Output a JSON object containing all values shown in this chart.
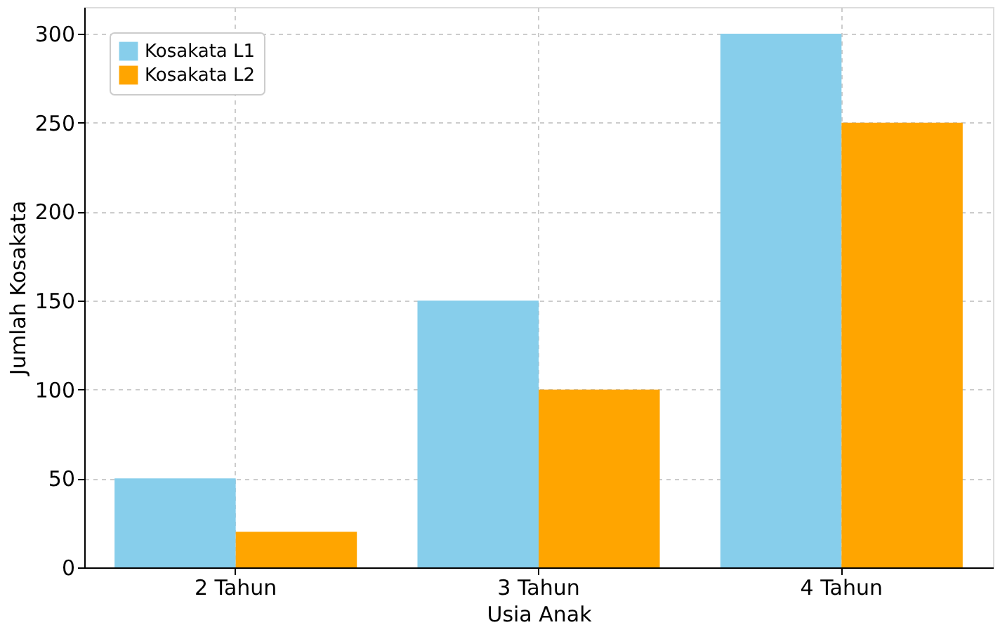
{
  "chart_data": {
    "type": "bar",
    "xlabel": "Usia Anak",
    "ylabel": "Jumlah Kosakata",
    "categories": [
      "2 Tahun",
      "3 Tahun",
      "4 Tahun"
    ],
    "series": [
      {
        "name": "Kosakata L1",
        "color": "#87ceeb",
        "values": [
          50,
          150,
          300
        ]
      },
      {
        "name": "Kosakata L2",
        "color": "#ffa500",
        "values": [
          20,
          100,
          250
        ]
      }
    ],
    "ylim": [
      0,
      315
    ],
    "yticks": [
      0,
      50,
      100,
      150,
      200,
      250,
      300
    ],
    "grid": true,
    "legend": "top left"
  }
}
